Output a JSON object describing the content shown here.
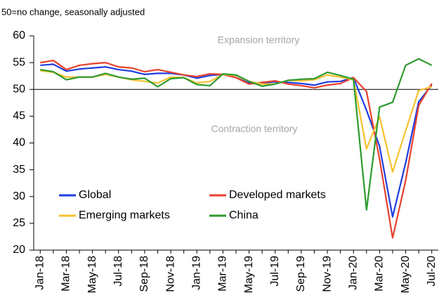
{
  "chart_data": {
    "type": "line",
    "subtitle": "50=no change, seasonally adjusted",
    "annotations": [
      "Expansion territory",
      "Contraction territory"
    ],
    "categories": [
      "Jan-18",
      null,
      "Mar-18",
      null,
      "May-18",
      null,
      "Jul-18",
      null,
      "Sep-18",
      null,
      "Nov-18",
      null,
      "Jan-19",
      null,
      "Mar-19",
      null,
      "May-19",
      null,
      "Jul-19",
      null,
      "Sep-19",
      null,
      "Nov-19",
      null,
      "Jan-20",
      null,
      "Mar-20",
      null,
      "May-20",
      null,
      "Jul-20"
    ],
    "series": [
      {
        "name": "Global",
        "color": "#1f3de0",
        "values": [
          54.5,
          54.7,
          53.4,
          53.8,
          54.0,
          54.2,
          53.7,
          53.4,
          52.8,
          53.0,
          53.0,
          52.7,
          52.1,
          52.6,
          52.8,
          52.2,
          51.2,
          51.2,
          51.4,
          51.3,
          51.1,
          50.8,
          51.4,
          51.5,
          52.2,
          46.1,
          39.4,
          26.2,
          36.3,
          47.7,
          50.8
        ]
      },
      {
        "name": "Developed markets",
        "color": "#e8412c",
        "values": [
          55.0,
          55.4,
          53.7,
          54.5,
          54.8,
          55.0,
          54.2,
          54.0,
          53.3,
          53.7,
          53.2,
          52.7,
          52.4,
          52.9,
          52.8,
          52.2,
          51.0,
          51.3,
          51.6,
          51.0,
          50.7,
          50.3,
          50.8,
          51.1,
          52.2,
          49.6,
          37.0,
          22.3,
          33.0,
          47.0,
          51.1
        ]
      },
      {
        "name": "Emerging markets",
        "color": "#f7c12e",
        "values": [
          53.5,
          53.2,
          52.3,
          52.3,
          52.3,
          52.8,
          52.3,
          51.8,
          51.5,
          51.2,
          52.3,
          52.2,
          51.2,
          51.5,
          52.8,
          52.6,
          51.5,
          51.0,
          51.0,
          51.7,
          51.6,
          51.8,
          52.7,
          52.3,
          51.8,
          38.9,
          44.9,
          34.6,
          42.3,
          49.8,
          50.5
        ]
      },
      {
        "name": "China",
        "color": "#2e9a2e",
        "values": [
          53.7,
          53.3,
          51.8,
          52.3,
          52.3,
          53.0,
          52.3,
          51.9,
          52.1,
          50.5,
          52.0,
          52.2,
          50.9,
          50.7,
          52.9,
          52.7,
          51.5,
          50.6,
          51.0,
          51.7,
          51.9,
          52.0,
          53.2,
          52.6,
          51.9,
          27.5,
          46.7,
          47.6,
          54.5,
          55.7,
          54.5
        ]
      }
    ],
    "ylim": [
      20,
      60
    ],
    "yticks": [
      20,
      25,
      30,
      35,
      40,
      45,
      50,
      55,
      60
    ],
    "reference_line": 50,
    "grid": false,
    "legend": "lower left"
  }
}
